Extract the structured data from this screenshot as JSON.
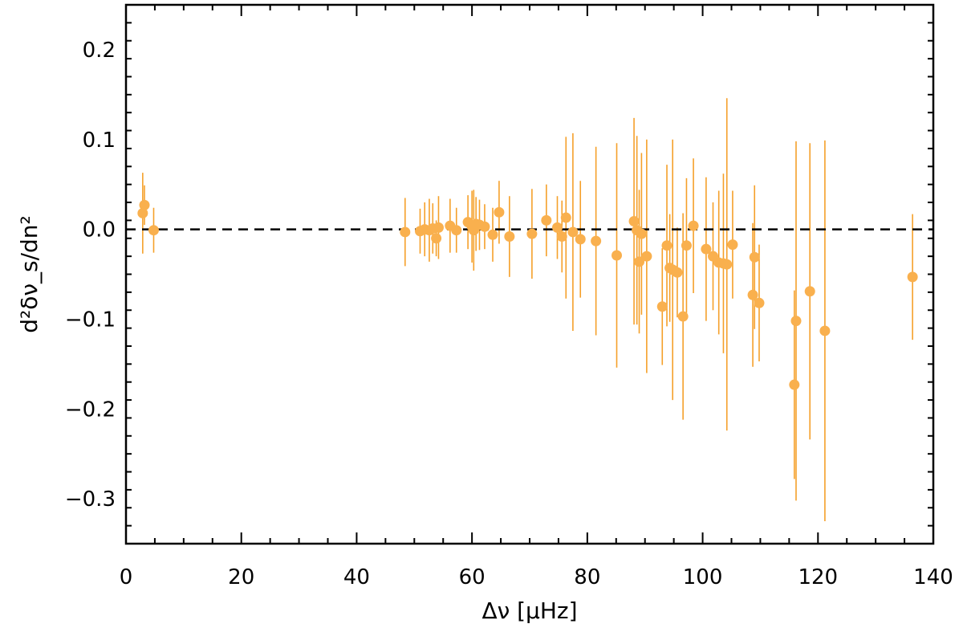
{
  "chart_data": {
    "type": "scatter",
    "xlabel": "Δν [μHz]",
    "ylabel": "d²δν_s/dn²",
    "xlim": [
      0,
      140
    ],
    "ylim": [
      -0.35,
      0.25
    ],
    "x_ticks": [
      0,
      20,
      40,
      60,
      80,
      100,
      120,
      140
    ],
    "x_tick_labels": [
      "0",
      "20",
      "40",
      "60",
      "80",
      "100",
      "120",
      "140"
    ],
    "y_ticks": [
      -0.3,
      -0.2,
      -0.1,
      0.0,
      0.1,
      0.2
    ],
    "y_tick_labels": [
      "−0.3",
      "−0.2",
      "−0.1",
      "0.0",
      "0.1",
      "0.2"
    ],
    "reference_line": {
      "y": 0.0,
      "style": "dashed",
      "color": "#000000"
    },
    "marker_color": "#F9B04E",
    "errorbar_color": "#F5A02A",
    "grid": false,
    "legend": "none",
    "points": [
      {
        "x": 2.9,
        "y": 0.018,
        "err": 0.045
      },
      {
        "x": 3.2,
        "y": 0.027,
        "err": 0.022
      },
      {
        "x": 4.8,
        "y": -0.001,
        "err": 0.025
      },
      {
        "x": 48.4,
        "y": -0.003,
        "err": 0.038
      },
      {
        "x": 51.0,
        "y": -0.002,
        "err": 0.025
      },
      {
        "x": 51.8,
        "y": 0.0,
        "err": 0.03
      },
      {
        "x": 52.6,
        "y": -0.001,
        "err": 0.035
      },
      {
        "x": 53.2,
        "y": 0.001,
        "err": 0.028
      },
      {
        "x": 53.8,
        "y": -0.01,
        "err": 0.02
      },
      {
        "x": 54.2,
        "y": 0.002,
        "err": 0.035
      },
      {
        "x": 56.2,
        "y": 0.004,
        "err": 0.03
      },
      {
        "x": 57.3,
        "y": -0.001,
        "err": 0.025
      },
      {
        "x": 59.3,
        "y": 0.008,
        "err": 0.03
      },
      {
        "x": 60.0,
        "y": 0.003,
        "err": 0.04
      },
      {
        "x": 60.3,
        "y": -0.001,
        "err": 0.045
      },
      {
        "x": 60.7,
        "y": 0.006,
        "err": 0.03
      },
      {
        "x": 61.3,
        "y": 0.005,
        "err": 0.028
      },
      {
        "x": 62.2,
        "y": 0.003,
        "err": 0.025
      },
      {
        "x": 63.6,
        "y": -0.006,
        "err": 0.03
      },
      {
        "x": 64.7,
        "y": 0.019,
        "err": 0.035
      },
      {
        "x": 66.5,
        "y": -0.008,
        "err": 0.045
      },
      {
        "x": 70.4,
        "y": -0.005,
        "err": 0.05
      },
      {
        "x": 72.9,
        "y": 0.01,
        "err": 0.04
      },
      {
        "x": 74.8,
        "y": 0.002,
        "err": 0.035
      },
      {
        "x": 75.6,
        "y": -0.008,
        "err": 0.04
      },
      {
        "x": 76.3,
        "y": 0.013,
        "err": 0.09
      },
      {
        "x": 77.5,
        "y": -0.003,
        "err": 0.11
      },
      {
        "x": 78.8,
        "y": -0.011,
        "err": 0.065
      },
      {
        "x": 81.5,
        "y": -0.013,
        "err": 0.105
      },
      {
        "x": 85.1,
        "y": -0.029,
        "err": 0.125
      },
      {
        "x": 88.1,
        "y": 0.009,
        "err": 0.115
      },
      {
        "x": 88.6,
        "y": -0.001,
        "err": 0.105
      },
      {
        "x": 89.0,
        "y": -0.036,
        "err": 0.08
      },
      {
        "x": 89.4,
        "y": -0.005,
        "err": 0.09
      },
      {
        "x": 90.3,
        "y": -0.03,
        "err": 0.13
      },
      {
        "x": 93.0,
        "y": -0.086,
        "err": 0.065
      },
      {
        "x": 93.8,
        "y": -0.018,
        "err": 0.09
      },
      {
        "x": 94.3,
        "y": -0.043,
        "err": 0.06
      },
      {
        "x": 94.8,
        "y": -0.045,
        "err": 0.145
      },
      {
        "x": 95.6,
        "y": -0.048,
        "err": 0.05
      },
      {
        "x": 96.6,
        "y": -0.097,
        "err": 0.115
      },
      {
        "x": 97.2,
        "y": -0.018,
        "err": 0.075
      },
      {
        "x": 98.4,
        "y": 0.004,
        "err": 0.075
      },
      {
        "x": 100.6,
        "y": -0.022,
        "err": 0.08
      },
      {
        "x": 101.8,
        "y": -0.03,
        "err": 0.06
      },
      {
        "x": 102.8,
        "y": -0.037,
        "err": 0.08
      },
      {
        "x": 103.6,
        "y": -0.038,
        "err": 0.1
      },
      {
        "x": 104.2,
        "y": -0.039,
        "err": 0.185
      },
      {
        "x": 105.2,
        "y": -0.017,
        "err": 0.06
      },
      {
        "x": 108.7,
        "y": -0.073,
        "err": 0.08
      },
      {
        "x": 109.0,
        "y": -0.031,
        "err": 0.08
      },
      {
        "x": 109.8,
        "y": -0.082,
        "err": 0.065
      },
      {
        "x": 115.9,
        "y": -0.173,
        "err": 0.105
      },
      {
        "x": 116.2,
        "y": -0.102,
        "err": 0.2
      },
      {
        "x": 118.6,
        "y": -0.069,
        "err": 0.165
      },
      {
        "x": 121.2,
        "y": -0.113,
        "err": 0.212
      },
      {
        "x": 136.4,
        "y": -0.053,
        "err": 0.07
      }
    ]
  }
}
